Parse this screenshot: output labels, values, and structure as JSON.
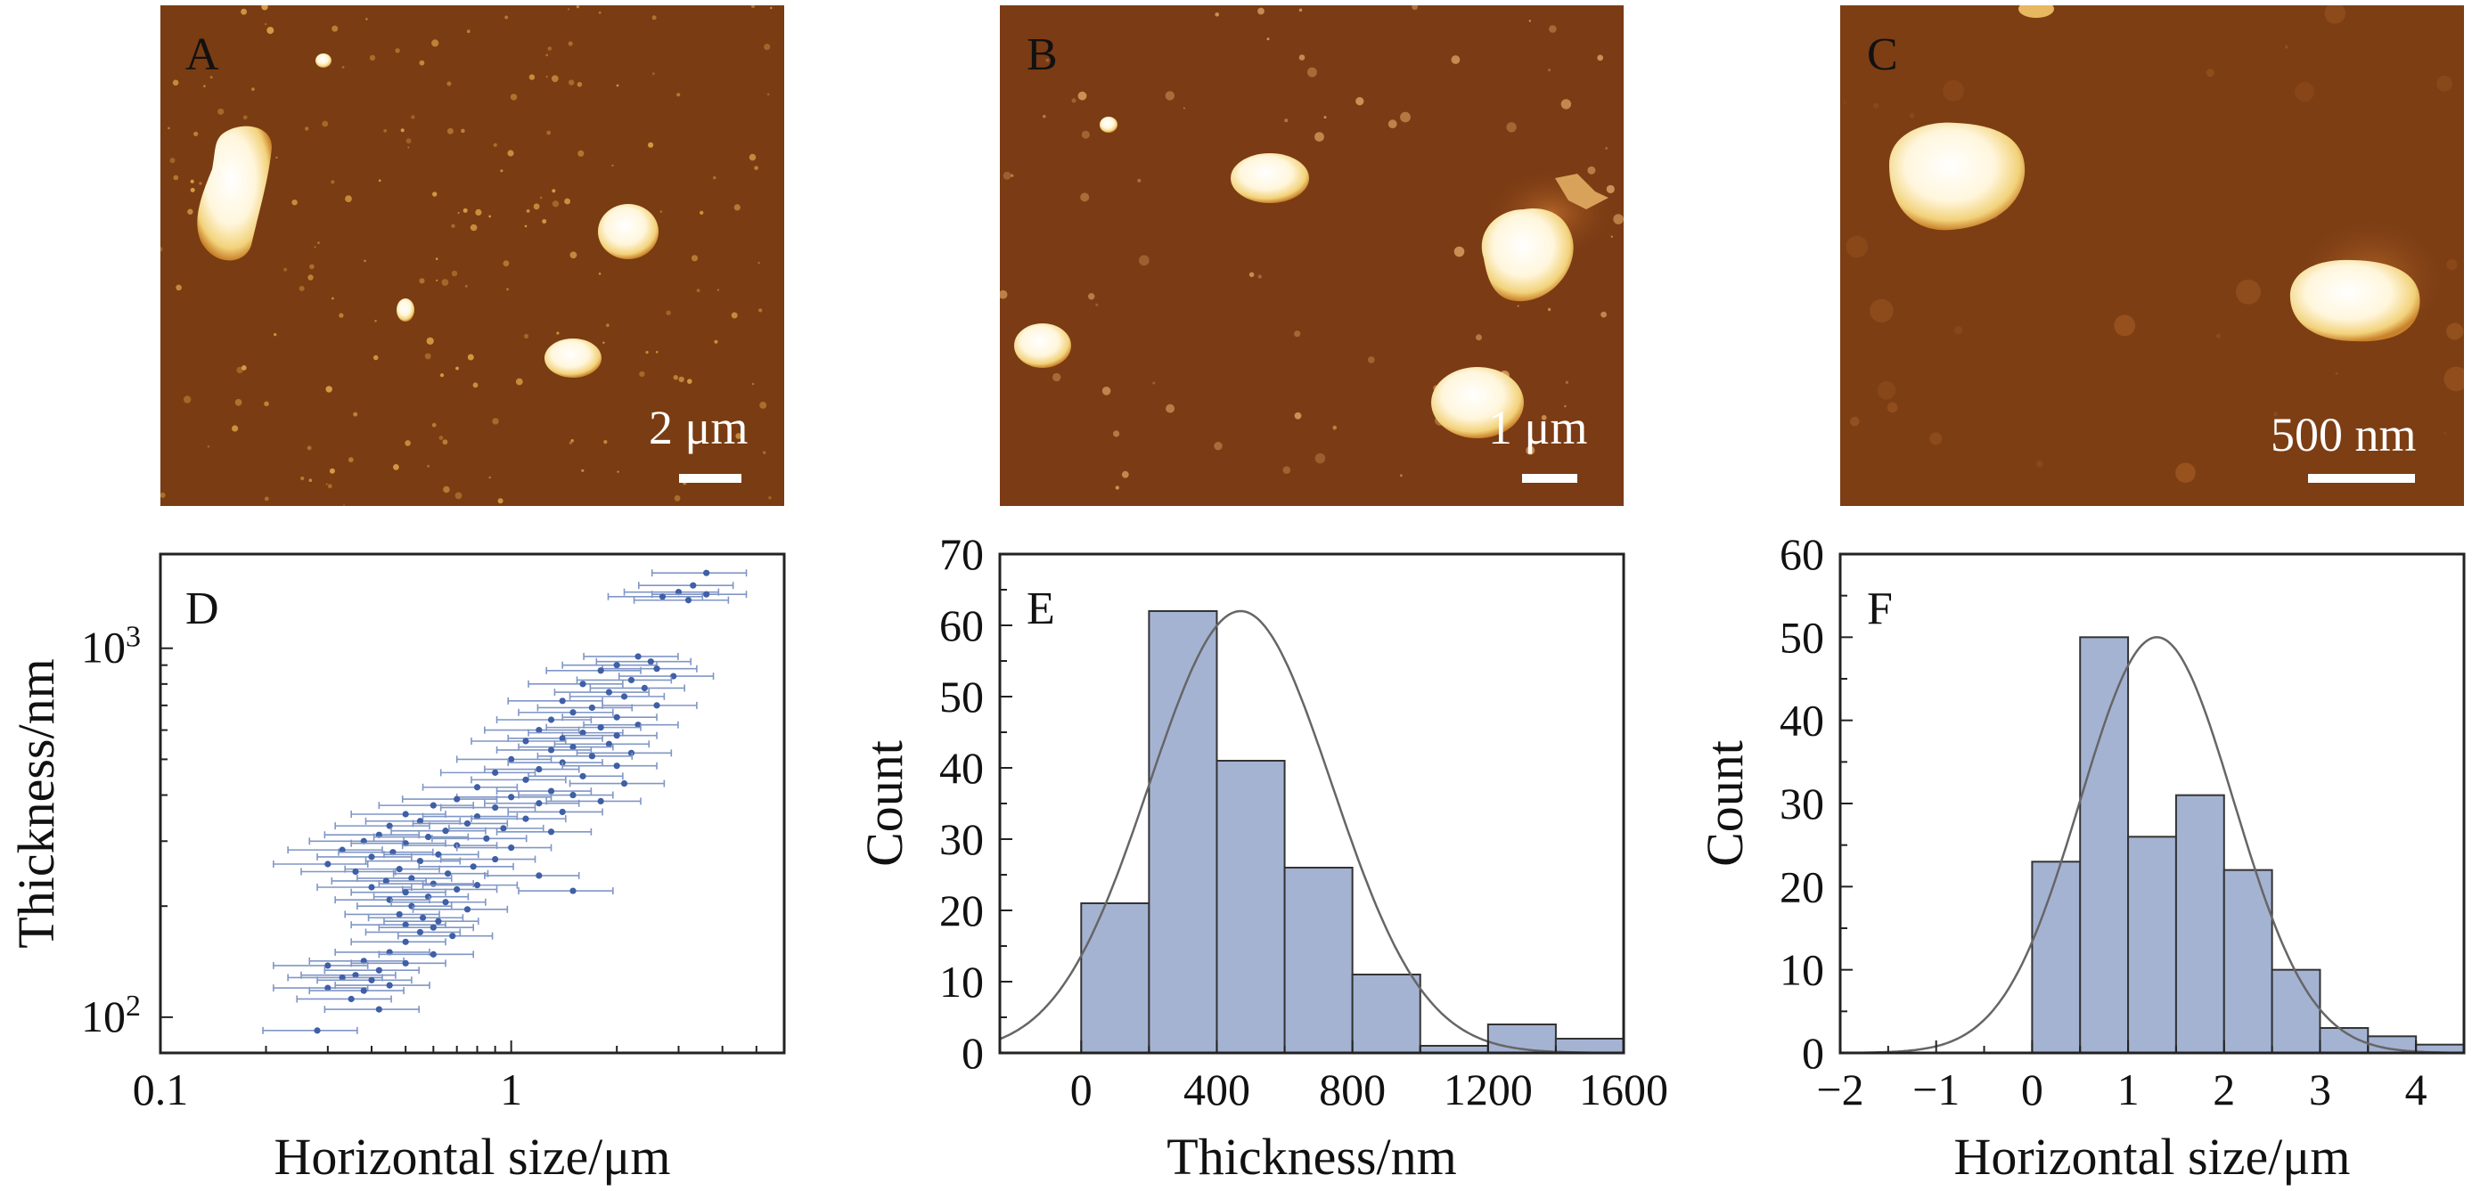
{
  "figure": {
    "panels": {
      "A": {
        "letter": "A",
        "type": "afm_image",
        "scale_bar": "2 μm"
      },
      "B": {
        "letter": "B",
        "type": "afm_image",
        "scale_bar": "1 μm"
      },
      "C": {
        "letter": "C",
        "type": "afm_image",
        "scale_bar": "500 nm"
      },
      "D": {
        "letter": "D"
      },
      "E": {
        "letter": "E"
      },
      "F": {
        "letter": "F"
      }
    },
    "colors": {
      "afm_background": "#7a3c12",
      "afm_particle": "#fff6dc",
      "afm_particle_edge": "#e0b040",
      "bar_fill": "#a5b3d3",
      "marker": "#3f5fa6",
      "errorbar": "#8096c6",
      "curve": "#666666"
    }
  },
  "chart_data": [
    {
      "id": "D",
      "type": "scatter",
      "title": "",
      "xlabel": "Horizontal size/μm",
      "ylabel": "Thickness/nm",
      "xscale": "log",
      "yscale": "log",
      "xlim": [
        0.1,
        6.0
      ],
      "ylim": [
        80,
        1800
      ],
      "xticks": [
        {
          "v": 0.1,
          "label": "0.1"
        },
        {
          "v": 1,
          "label": "1"
        }
      ],
      "yticks": [
        {
          "v": 100,
          "base": "10",
          "exp": "2"
        },
        {
          "v": 1000,
          "base": "10",
          "exp": "3"
        }
      ],
      "x_error_relative": 0.3,
      "points": [
        [
          3.6,
          1600
        ],
        [
          3.3,
          1480
        ],
        [
          3.0,
          1420
        ],
        [
          3.6,
          1400
        ],
        [
          2.7,
          1380
        ],
        [
          3.2,
          1350
        ],
        [
          2.3,
          950
        ],
        [
          2.5,
          920
        ],
        [
          2.0,
          900
        ],
        [
          2.6,
          880
        ],
        [
          1.8,
          870
        ],
        [
          2.9,
          840
        ],
        [
          2.2,
          820
        ],
        [
          1.6,
          800
        ],
        [
          2.4,
          780
        ],
        [
          1.9,
          760
        ],
        [
          2.1,
          740
        ],
        [
          1.4,
          720
        ],
        [
          2.6,
          700
        ],
        [
          1.7,
          690
        ],
        [
          1.5,
          670
        ],
        [
          2.0,
          650
        ],
        [
          1.3,
          640
        ],
        [
          2.3,
          620
        ],
        [
          1.8,
          610
        ],
        [
          1.2,
          600
        ],
        [
          1.6,
          590
        ],
        [
          2.0,
          580
        ],
        [
          1.4,
          570
        ],
        [
          1.1,
          560
        ],
        [
          1.9,
          550
        ],
        [
          1.5,
          540
        ],
        [
          1.3,
          530
        ],
        [
          2.2,
          520
        ],
        [
          1.7,
          510
        ],
        [
          1.0,
          500
        ],
        [
          1.4,
          490
        ],
        [
          2.0,
          480
        ],
        [
          1.2,
          470
        ],
        [
          0.9,
          460
        ],
        [
          1.6,
          450
        ],
        [
          1.1,
          440
        ],
        [
          2.1,
          430
        ],
        [
          0.8,
          420
        ],
        [
          1.3,
          410
        ],
        [
          1.5,
          400
        ],
        [
          1.0,
          395
        ],
        [
          0.7,
          390
        ],
        [
          1.8,
          385
        ],
        [
          1.2,
          380
        ],
        [
          0.6,
          375
        ],
        [
          0.9,
          370
        ],
        [
          1.4,
          360
        ],
        [
          0.5,
          355
        ],
        [
          0.8,
          350
        ],
        [
          1.1,
          345
        ],
        [
          0.55,
          340
        ],
        [
          0.75,
          335
        ],
        [
          0.45,
          330
        ],
        [
          0.95,
          325
        ],
        [
          0.65,
          320
        ],
        [
          1.3,
          318
        ],
        [
          0.42,
          312
        ],
        [
          0.58,
          308
        ],
        [
          0.85,
          305
        ],
        [
          0.38,
          300
        ],
        [
          0.5,
          296
        ],
        [
          0.7,
          292
        ],
        [
          1.0,
          288
        ],
        [
          0.33,
          284
        ],
        [
          0.46,
          280
        ],
        [
          0.62,
          276
        ],
        [
          0.4,
          272
        ],
        [
          0.9,
          268
        ],
        [
          0.55,
          265
        ],
        [
          0.3,
          260
        ],
        [
          0.78,
          256
        ],
        [
          0.48,
          252
        ],
        [
          0.36,
          248
        ],
        [
          0.66,
          245
        ],
        [
          1.2,
          242
        ],
        [
          0.52,
          238
        ],
        [
          0.44,
          234
        ],
        [
          0.6,
          230
        ],
        [
          0.8,
          228
        ],
        [
          0.4,
          225
        ],
        [
          0.7,
          222
        ],
        [
          1.5,
          220
        ],
        [
          0.5,
          218
        ],
        [
          0.58,
          212
        ],
        [
          0.45,
          208
        ],
        [
          0.65,
          205
        ],
        [
          0.52,
          200
        ],
        [
          0.75,
          196
        ],
        [
          0.48,
          190
        ],
        [
          0.56,
          186
        ],
        [
          0.62,
          182
        ],
        [
          0.5,
          178
        ],
        [
          0.6,
          175
        ],
        [
          0.55,
          170
        ],
        [
          0.68,
          166
        ],
        [
          0.5,
          160
        ],
        [
          0.45,
          150
        ],
        [
          0.6,
          148
        ],
        [
          0.38,
          142
        ],
        [
          0.5,
          140
        ],
        [
          0.3,
          138
        ],
        [
          0.42,
          134
        ],
        [
          0.36,
          130
        ],
        [
          0.33,
          128
        ],
        [
          0.4,
          126
        ],
        [
          0.45,
          122
        ],
        [
          0.3,
          120
        ],
        [
          0.38,
          118
        ],
        [
          0.35,
          112
        ],
        [
          0.42,
          105
        ],
        [
          0.28,
          92
        ]
      ]
    },
    {
      "id": "E",
      "type": "bar",
      "title": "",
      "xlabel": "Thickness/nm",
      "ylabel": "Count",
      "xlim": [
        -240,
        1600
      ],
      "ylim": [
        0,
        70
      ],
      "xticks": [
        0,
        400,
        800,
        1200,
        1600
      ],
      "yticks": [
        0,
        10,
        20,
        30,
        40,
        50,
        60,
        70
      ],
      "bin_edges": [
        0,
        200,
        400,
        600,
        800,
        1000,
        1200,
        1400,
        1600
      ],
      "counts": [
        21,
        62,
        41,
        26,
        11,
        1,
        4,
        2
      ],
      "fit": {
        "type": "gaussian",
        "amplitude": 62,
        "mean": 470,
        "sigma": 270
      }
    },
    {
      "id": "F",
      "type": "bar",
      "title": "",
      "xlabel": "Horizontal size/μm",
      "ylabel": "Count",
      "xlim": [
        -2,
        4.5
      ],
      "ylim": [
        0,
        60
      ],
      "xticks": [
        -2,
        -1,
        0,
        1,
        2,
        3,
        4
      ],
      "xtick_labels": [
        "−2",
        "−1",
        "0",
        "1",
        "2",
        "3",
        "4"
      ],
      "yticks": [
        0,
        10,
        20,
        30,
        40,
        50,
        60
      ],
      "bin_edges": [
        0,
        0.5,
        1.0,
        1.5,
        2.0,
        2.5,
        3.0,
        3.5,
        4.0,
        4.5
      ],
      "counts": [
        23,
        50,
        26,
        31,
        22,
        10,
        3,
        2,
        1
      ],
      "fit": {
        "type": "gaussian",
        "amplitude": 50,
        "mean": 1.3,
        "sigma": 0.8
      }
    }
  ]
}
